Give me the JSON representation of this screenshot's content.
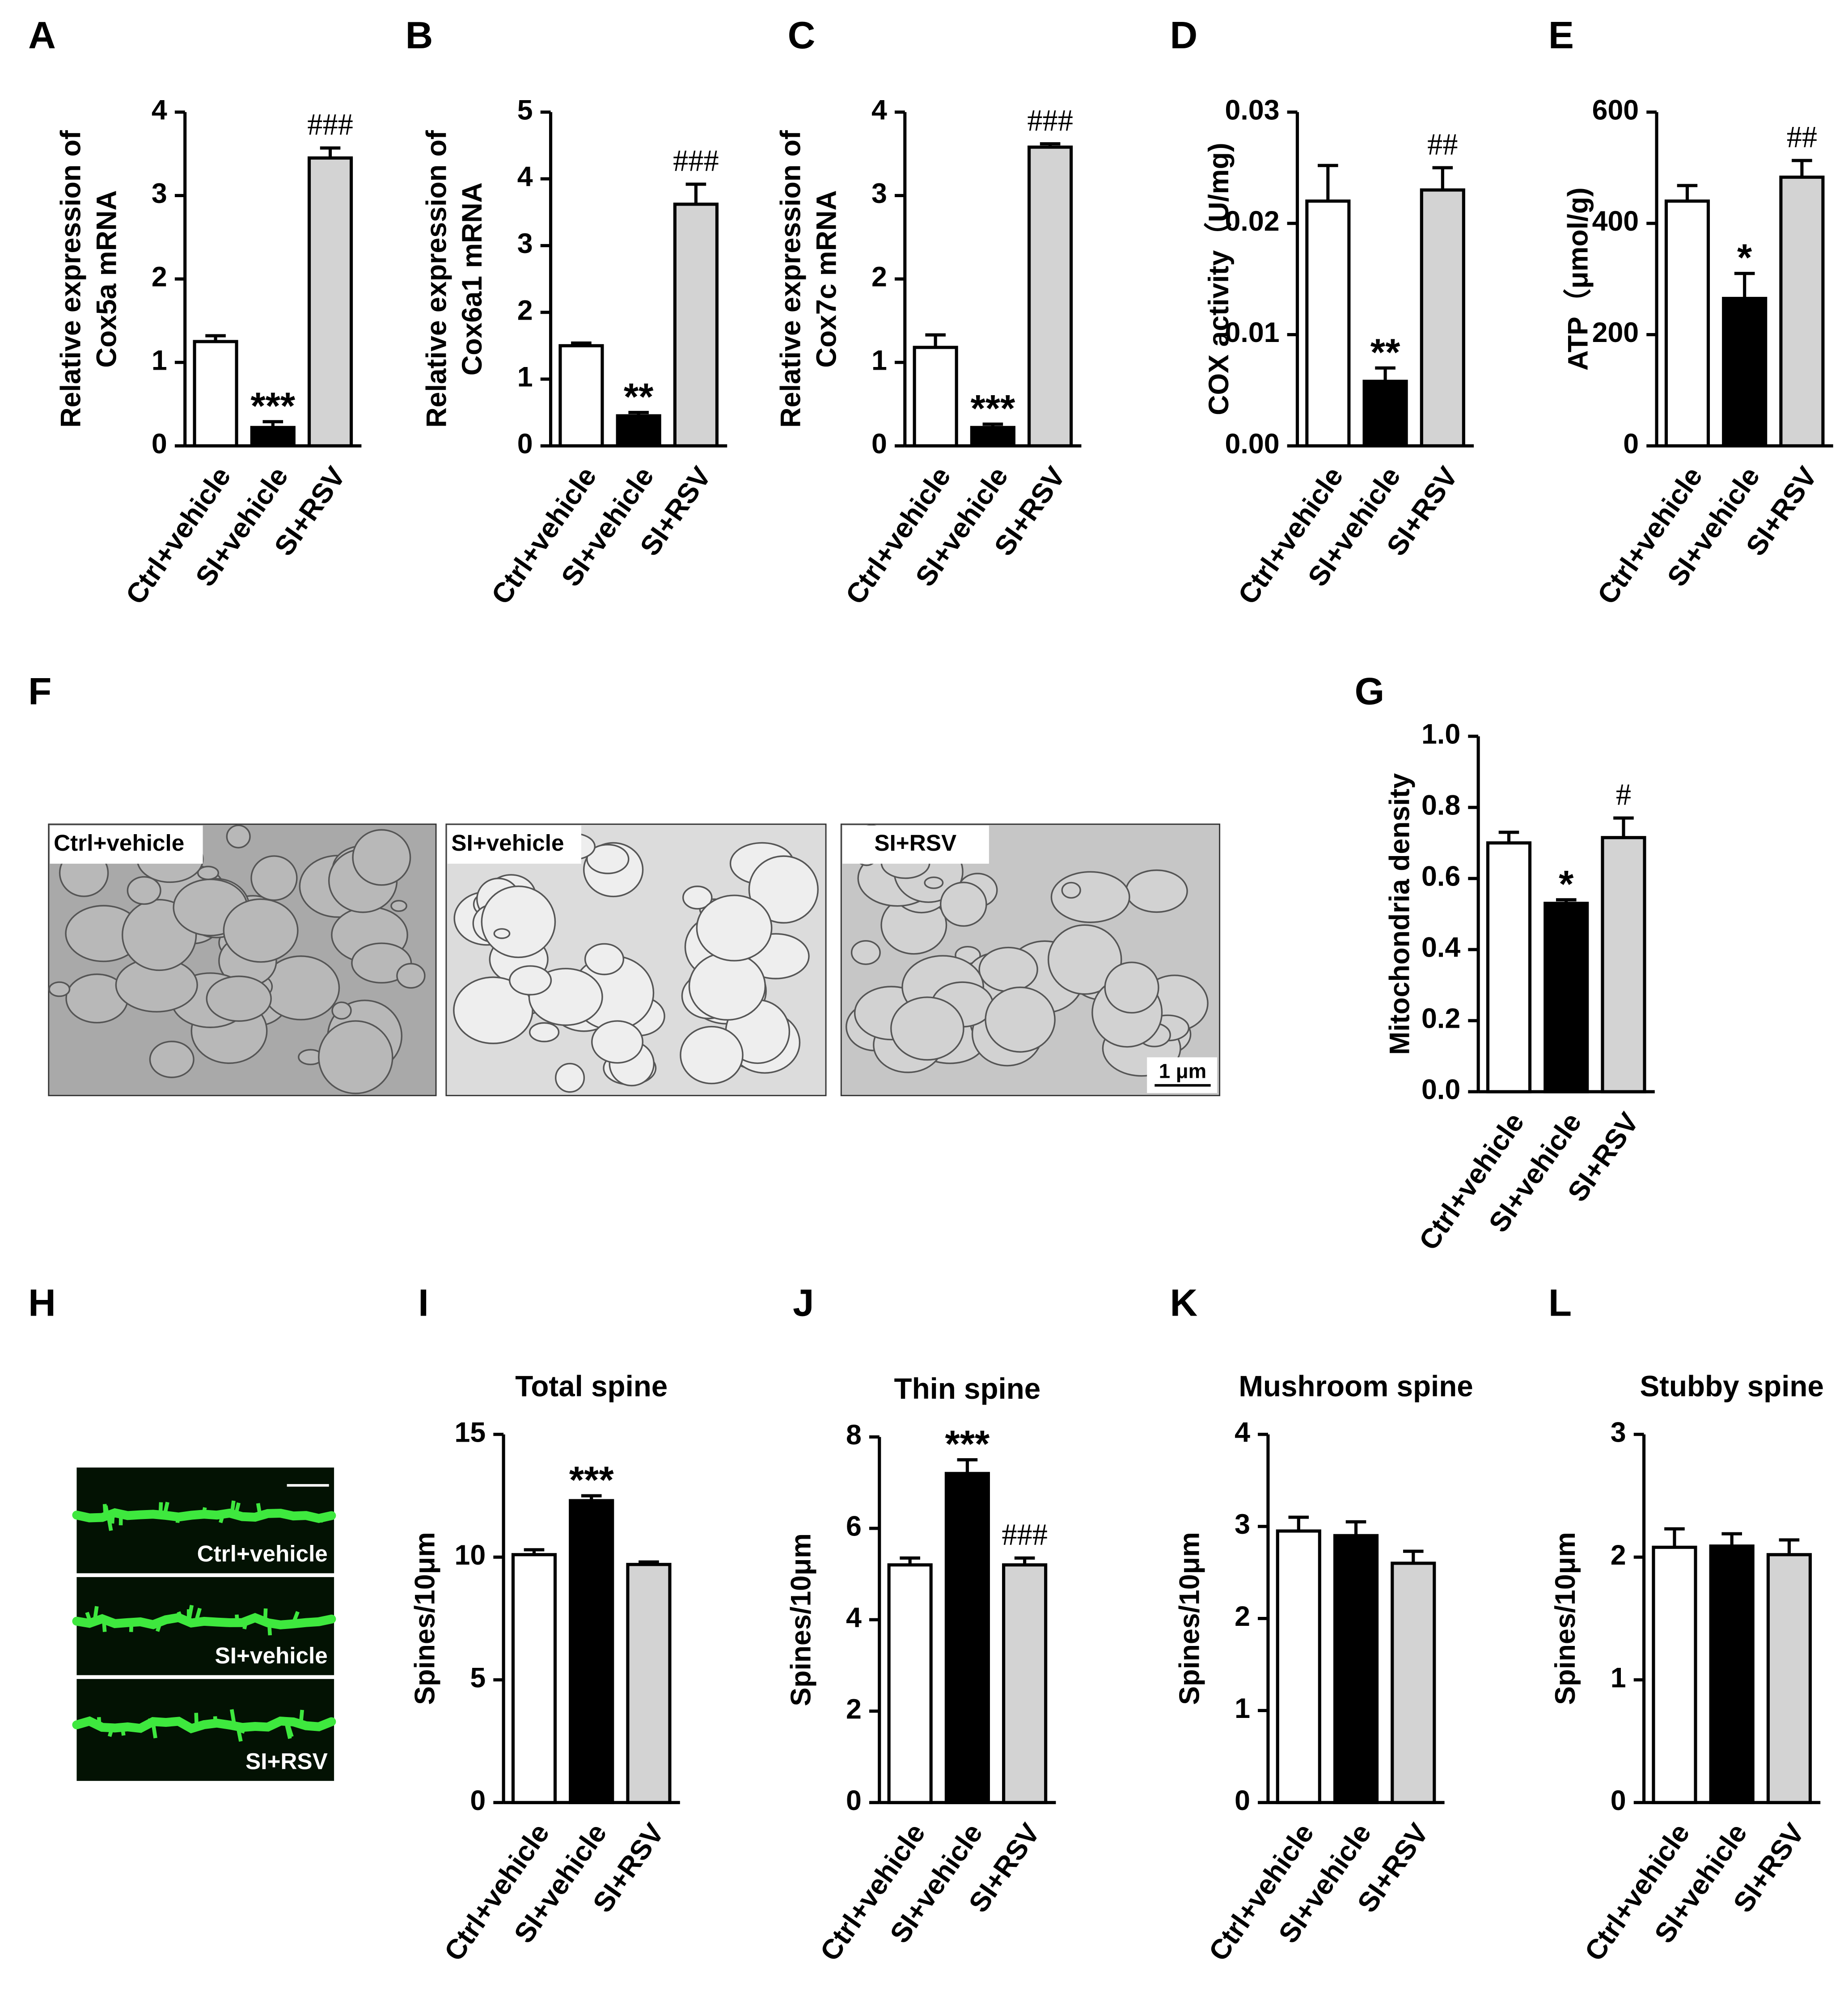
{
  "chart_data": [
    {
      "type": "bar",
      "panel": "A",
      "ylabel": [
        "Relative expression of",
        "Cox5a mRNA"
      ],
      "categories": [
        "Ctrl+vehicle",
        "SI+vehicle",
        "SI+RSV"
      ],
      "values": [
        1.25,
        0.22,
        3.45
      ],
      "errors": [
        0.07,
        0.07,
        0.12
      ],
      "annotations": [
        null,
        "***",
        "###"
      ],
      "colors": [
        "#ffffff",
        "#000000",
        "#d3d3d3"
      ],
      "ylim": [
        0,
        4
      ],
      "yticks": [
        0,
        1,
        2,
        3,
        4
      ]
    },
    {
      "type": "bar",
      "panel": "B",
      "ylabel": [
        "Relative expression of",
        "Cox6a1 mRNA"
      ],
      "categories": [
        "Ctrl+vehicle",
        "SI+vehicle",
        "SI+RSV"
      ],
      "values": [
        1.5,
        0.45,
        3.62
      ],
      "errors": [
        0.04,
        0.05,
        0.3
      ],
      "annotations": [
        null,
        "**",
        "###"
      ],
      "colors": [
        "#ffffff",
        "#000000",
        "#d3d3d3"
      ],
      "ylim": [
        0,
        5
      ],
      "yticks": [
        0,
        1,
        2,
        3,
        4,
        5
      ]
    },
    {
      "type": "bar",
      "panel": "C",
      "ylabel": [
        "Relative expression of",
        "Cox7c mRNA"
      ],
      "categories": [
        "Ctrl+vehicle",
        "SI+vehicle",
        "SI+RSV"
      ],
      "values": [
        1.18,
        0.22,
        3.58
      ],
      "errors": [
        0.15,
        0.04,
        0.04
      ],
      "annotations": [
        null,
        "***",
        "###"
      ],
      "colors": [
        "#ffffff",
        "#000000",
        "#d3d3d3"
      ],
      "ylim": [
        0,
        4
      ],
      "yticks": [
        0,
        1,
        2,
        3,
        4
      ]
    },
    {
      "type": "bar",
      "panel": "D",
      "ylabel": [
        "COX activity（U/mg)"
      ],
      "categories": [
        "Ctrl+vehicle",
        "SI+vehicle",
        "SI+RSV"
      ],
      "values": [
        0.022,
        0.0058,
        0.023
      ],
      "errors": [
        0.0032,
        0.0012,
        0.002
      ],
      "annotations": [
        null,
        "**",
        "##"
      ],
      "colors": [
        "#ffffff",
        "#000000",
        "#d3d3d3"
      ],
      "ylim": [
        0,
        0.03
      ],
      "yticks": [
        {
          "value": 0,
          "label": "0.00"
        },
        {
          "value": 0.01,
          "label": "0.01"
        },
        {
          "value": 0.02,
          "label": "0.02"
        },
        {
          "value": 0.03,
          "label": "0.03"
        }
      ]
    },
    {
      "type": "bar",
      "panel": "E",
      "ylabel": [
        "ATP（μmol/g)"
      ],
      "categories": [
        "Ctrl+vehicle",
        "SI+vehicle",
        "SI+RSV"
      ],
      "values": [
        440,
        265,
        483
      ],
      "errors": [
        28,
        45,
        30
      ],
      "annotations": [
        null,
        "*",
        "##"
      ],
      "colors": [
        "#ffffff",
        "#000000",
        "#d3d3d3"
      ],
      "ylim": [
        0,
        600
      ],
      "yticks": [
        0,
        200,
        400,
        600
      ]
    },
    {
      "type": "bar",
      "panel": "G",
      "ylabel": [
        "Mitochondria density"
      ],
      "categories": [
        "Ctrl+vehicle",
        "SI+vehicle",
        "SI+RSV"
      ],
      "values": [
        0.7,
        0.53,
        0.715
      ],
      "errors": [
        0.03,
        0.01,
        0.055
      ],
      "annotations": [
        null,
        "*",
        "#"
      ],
      "colors": [
        "#ffffff",
        "#000000",
        "#d3d3d3"
      ],
      "ylim": [
        0,
        1
      ],
      "yticks": [
        {
          "value": 0,
          "label": "0.0"
        },
        {
          "value": 0.2,
          "label": "0.2"
        },
        {
          "value": 0.4,
          "label": "0.4"
        },
        {
          "value": 0.6,
          "label": "0.6"
        },
        {
          "value": 0.8,
          "label": "0.8"
        },
        {
          "value": 1,
          "label": "1.0"
        }
      ]
    },
    {
      "type": "bar",
      "panel": "I",
      "title": "Total spine",
      "ylabel": [
        "Spines/10μm"
      ],
      "categories": [
        "Ctrl+vehicle",
        "SI+vehicle",
        "SI+RSV"
      ],
      "values": [
        10.1,
        12.3,
        9.7
      ],
      "errors": [
        0.2,
        0.2,
        0.1
      ],
      "annotations": [
        null,
        "***",
        null
      ],
      "colors": [
        "#ffffff",
        "#000000",
        "#d3d3d3"
      ],
      "ylim": [
        0,
        15
      ],
      "yticks": [
        0,
        5,
        10,
        15
      ]
    },
    {
      "type": "bar",
      "panel": "J",
      "title": "Thin spine",
      "ylabel": [
        "Spines/10μm"
      ],
      "categories": [
        "Ctrl+vehicle",
        "SI+vehicle",
        "SI+RSV"
      ],
      "values": [
        5.2,
        7.2,
        5.2
      ],
      "errors": [
        0.15,
        0.3,
        0.15
      ],
      "annotations": [
        null,
        "***",
        "###"
      ],
      "colors": [
        "#ffffff",
        "#000000",
        "#d3d3d3"
      ],
      "ylim": [
        0,
        8
      ],
      "yticks": [
        0,
        2,
        4,
        6,
        8
      ]
    },
    {
      "type": "bar",
      "panel": "K",
      "title": "Mushroom spine",
      "ylabel": [
        "Spines/10μm"
      ],
      "categories": [
        "Ctrl+vehicle",
        "SI+vehicle",
        "SI+RSV"
      ],
      "values": [
        2.95,
        2.9,
        2.6
      ],
      "errors": [
        0.15,
        0.15,
        0.13
      ],
      "annotations": [
        null,
        null,
        null
      ],
      "colors": [
        "#ffffff",
        "#000000",
        "#d3d3d3"
      ],
      "ylim": [
        0,
        4
      ],
      "yticks": [
        0,
        1,
        2,
        3,
        4
      ]
    },
    {
      "type": "bar",
      "panel": "L",
      "title": "Stubby spine",
      "ylabel": [
        "Spines/10μm"
      ],
      "categories": [
        "Ctrl+vehicle",
        "SI+vehicle",
        "SI+RSV"
      ],
      "values": [
        2.08,
        2.09,
        2.02
      ],
      "errors": [
        0.15,
        0.1,
        0.12
      ],
      "annotations": [
        null,
        null,
        null
      ],
      "colors": [
        "#ffffff",
        "#000000",
        "#d3d3d3"
      ],
      "ylim": [
        0,
        3
      ],
      "yticks": [
        0,
        1,
        2,
        3
      ]
    }
  ],
  "micrographs": {
    "panel": "F",
    "images": [
      "Ctrl+vehicle",
      "SI+vehicle",
      "SI+RSV"
    ],
    "scale_bar": "1 μm"
  },
  "dendrites": {
    "panel": "H",
    "images": [
      "Ctrl+vehicle",
      "SI+vehicle",
      "SI+RSV"
    ]
  }
}
